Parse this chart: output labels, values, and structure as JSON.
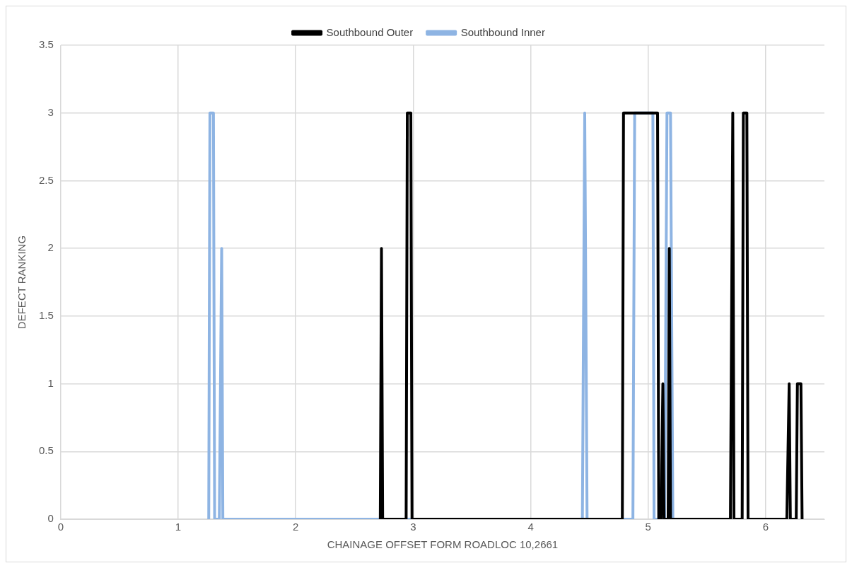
{
  "chart_data": {
    "type": "line",
    "xlabel": "CHAINAGE OFFSET FORM ROADLOC 10,2661",
    "ylabel": "DEFECT RANKING",
    "xlim": [
      0,
      6.5
    ],
    "xticks": [
      0,
      1,
      2,
      3,
      4,
      5,
      6
    ],
    "ylim": [
      0,
      3.5
    ],
    "yticks": [
      0,
      0.5,
      1,
      1.5,
      2,
      2.5,
      3,
      3.5
    ],
    "grid": true,
    "legend": "top",
    "marker": "none",
    "line_style": "solid",
    "series": [
      {
        "name": "Southbound Outer",
        "color": "#000000",
        "x": [
          2.72,
          2.73,
          2.74,
          2.94,
          2.95,
          2.98,
          2.99,
          4.78,
          4.79,
          5.08,
          5.09,
          5.11,
          5.125,
          5.135,
          5.17,
          5.18,
          5.19,
          5.7,
          5.72,
          5.73,
          5.8,
          5.81,
          5.84,
          5.85,
          6.18,
          6.2,
          6.21,
          6.26,
          6.27,
          6.3,
          6.31
        ],
        "values": [
          0,
          2,
          0,
          0,
          3,
          3,
          0,
          0,
          3,
          3,
          0,
          0,
          1,
          0,
          0,
          2,
          0,
          0,
          3,
          0,
          0,
          3,
          3,
          0,
          0,
          1,
          0,
          0,
          1,
          1,
          0
        ]
      },
      {
        "name": "Southbound Inner",
        "color": "#8eb4e3",
        "x": [
          1.26,
          1.27,
          1.3,
          1.31,
          1.35,
          1.37,
          1.38,
          4.44,
          4.46,
          4.48,
          4.87,
          4.885,
          5.04,
          5.05,
          5.14,
          5.16,
          5.19,
          5.21
        ],
        "values": [
          0,
          3,
          3,
          0,
          0,
          2,
          0,
          0,
          3,
          0,
          0,
          3,
          3,
          0,
          0,
          3,
          3,
          0
        ]
      }
    ]
  }
}
